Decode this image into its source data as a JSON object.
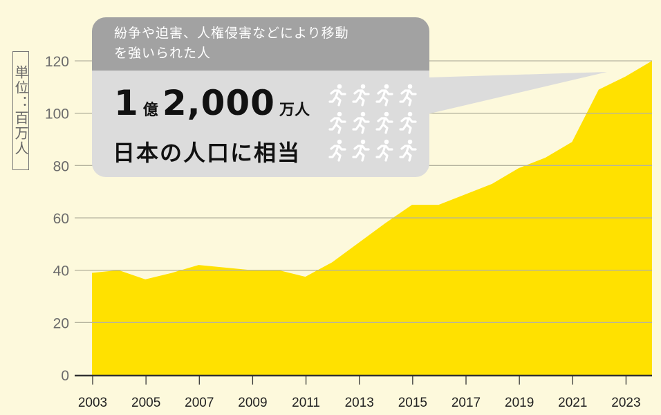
{
  "callout": {
    "headline": "紛争や迫害、人権侵害などにより移動を強いられた人",
    "headline_line1": "紛争や迫害、人権侵害などにより移動",
    "headline_line2": "を強いられた人",
    "number_1": "1",
    "unit_oku": "億",
    "number_2": "2,000",
    "unit_man": "万人",
    "comparison": "日本の人口に相当",
    "icon": "running-person-icon",
    "icon_count": 12
  },
  "chart_data": {
    "type": "area",
    "title": "",
    "unit_label": "単位：百万人",
    "xlabel": "",
    "ylabel": "単位：百万人",
    "x": [
      2003,
      2004,
      2005,
      2006,
      2007,
      2008,
      2009,
      2010,
      2011,
      2012,
      2013,
      2014,
      2015,
      2016,
      2017,
      2018,
      2019,
      2020,
      2021,
      2022,
      2023,
      2024
    ],
    "values": [
      39,
      40,
      36.5,
      39,
      42,
      41,
      40,
      40,
      37.5,
      43,
      50.5,
      58,
      65,
      65,
      69,
      73,
      79,
      83,
      89,
      109,
      114,
      120
    ],
    "xtick_labels": [
      "2003",
      "2005",
      "2007",
      "2009",
      "2011",
      "2013",
      "2015",
      "2017",
      "2019",
      "2021",
      "2023"
    ],
    "ytick_labels": [
      "0",
      "20",
      "40",
      "60",
      "80",
      "100",
      "120"
    ],
    "ylim": [
      0,
      120
    ],
    "grid": true,
    "colors": {
      "fill": "#ffe100",
      "background": "#fdf9dc",
      "grid": "#b5b39e"
    }
  }
}
